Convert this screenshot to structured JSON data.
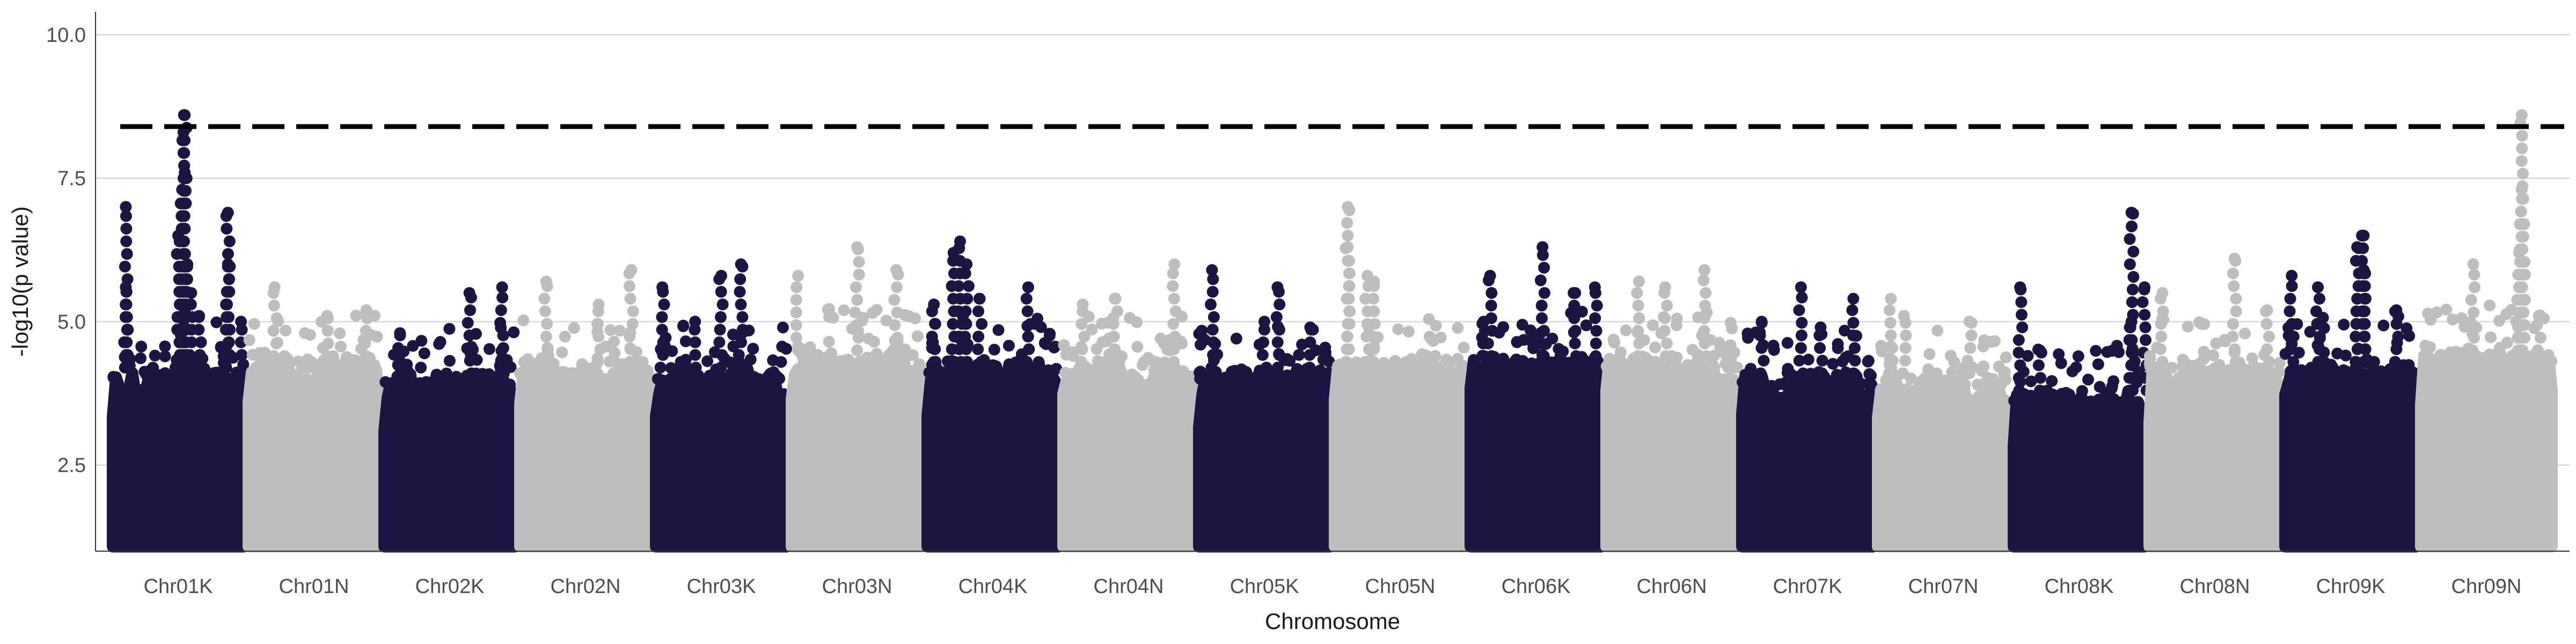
{
  "chart_data": {
    "type": "scatter",
    "subtype": "manhattan",
    "title": "",
    "xlabel": "Chromosome",
    "ylabel": "-log10(p value)",
    "ylim": [
      1.0,
      10.4
    ],
    "yticks": [
      "2.5",
      "5.0",
      "7.5",
      "10.0"
    ],
    "threshold": 8.4,
    "grid": "horizontal major lines",
    "colors": {
      "dark": "#1e1442",
      "light": "#bebebe",
      "threshold": "#000000",
      "grid": "#d0d0d0"
    },
    "categories": [
      "Chr01K",
      "Chr01N",
      "Chr02K",
      "Chr02N",
      "Chr03K",
      "Chr03N",
      "Chr04K",
      "Chr04N",
      "Chr05K",
      "Chr05N",
      "Chr06K",
      "Chr06N",
      "Chr07K",
      "Chr07N",
      "Chr08K",
      "Chr08N",
      "Chr09K",
      "Chr09N"
    ],
    "chromosomes": [
      {
        "name": "Chr01K",
        "color": "dark",
        "typical_max": 4.2,
        "peaks": [
          {
            "pos": 0.55,
            "y": 8.6
          },
          {
            "pos": 0.54,
            "y": 8.3
          },
          {
            "pos": 0.55,
            "y": 7.6
          },
          {
            "pos": 0.53,
            "y": 7.3
          },
          {
            "pos": 0.1,
            "y": 7.0
          },
          {
            "pos": 0.88,
            "y": 6.9
          },
          {
            "pos": 0.5,
            "y": 6.5
          },
          {
            "pos": 0.57,
            "y": 6.0
          },
          {
            "pos": 0.88,
            "y": 6.0
          },
          {
            "pos": 0.1,
            "y": 5.6
          },
          {
            "pos": 0.6,
            "y": 5.5
          },
          {
            "pos": 0.55,
            "y": 5.2
          },
          {
            "pos": 0.66,
            "y": 5.1
          },
          {
            "pos": 0.98,
            "y": 5.0
          }
        ]
      },
      {
        "name": "Chr01N",
        "color": "light",
        "typical_max": 4.4,
        "peaks": [
          {
            "pos": 0.2,
            "y": 5.6
          },
          {
            "pos": 0.9,
            "y": 5.2
          },
          {
            "pos": 0.6,
            "y": 5.1
          }
        ]
      },
      {
        "name": "Chr02K",
        "color": "dark",
        "typical_max": 4.1,
        "peaks": [
          {
            "pos": 0.65,
            "y": 5.5
          },
          {
            "pos": 0.9,
            "y": 5.6
          },
          {
            "pos": 0.12,
            "y": 4.8
          }
        ]
      },
      {
        "name": "Chr02N",
        "color": "light",
        "typical_max": 4.3,
        "peaks": [
          {
            "pos": 0.2,
            "y": 5.7
          },
          {
            "pos": 0.85,
            "y": 5.9
          },
          {
            "pos": 0.6,
            "y": 5.3
          }
        ]
      },
      {
        "name": "Chr03K",
        "color": "dark",
        "typical_max": 4.2,
        "peaks": [
          {
            "pos": 0.05,
            "y": 5.6
          },
          {
            "pos": 0.5,
            "y": 5.8
          },
          {
            "pos": 0.65,
            "y": 6.0
          },
          {
            "pos": 0.3,
            "y": 5.0
          }
        ]
      },
      {
        "name": "Chr03N",
        "color": "light",
        "typical_max": 4.5,
        "peaks": [
          {
            "pos": 0.5,
            "y": 6.3
          },
          {
            "pos": 0.05,
            "y": 5.8
          },
          {
            "pos": 0.8,
            "y": 5.9
          }
        ]
      },
      {
        "name": "Chr04K",
        "color": "dark",
        "typical_max": 4.3,
        "peaks": [
          {
            "pos": 0.25,
            "y": 6.4
          },
          {
            "pos": 0.2,
            "y": 6.2
          },
          {
            "pos": 0.3,
            "y": 6.0
          },
          {
            "pos": 0.77,
            "y": 5.6
          },
          {
            "pos": 0.4,
            "y": 5.4
          },
          {
            "pos": 0.05,
            "y": 5.3
          }
        ]
      },
      {
        "name": "Chr04N",
        "color": "light",
        "typical_max": 4.3,
        "peaks": [
          {
            "pos": 0.85,
            "y": 6.0
          },
          {
            "pos": 0.15,
            "y": 5.3
          },
          {
            "pos": 0.4,
            "y": 5.4
          }
        ]
      },
      {
        "name": "Chr05K",
        "color": "dark",
        "typical_max": 4.2,
        "peaks": [
          {
            "pos": 0.1,
            "y": 5.9
          },
          {
            "pos": 0.6,
            "y": 5.6
          },
          {
            "pos": 0.5,
            "y": 5.0
          },
          {
            "pos": 0.85,
            "y": 4.9
          }
        ]
      },
      {
        "name": "Chr05N",
        "color": "light",
        "typical_max": 4.3,
        "peaks": [
          {
            "pos": 0.1,
            "y": 7.0
          },
          {
            "pos": 0.1,
            "y": 6.3
          },
          {
            "pos": 0.25,
            "y": 5.8
          },
          {
            "pos": 0.3,
            "y": 5.7
          }
        ]
      },
      {
        "name": "Chr06K",
        "color": "dark",
        "typical_max": 4.4,
        "peaks": [
          {
            "pos": 0.55,
            "y": 6.3
          },
          {
            "pos": 0.15,
            "y": 5.8
          },
          {
            "pos": 0.95,
            "y": 5.6
          },
          {
            "pos": 0.8,
            "y": 5.5
          },
          {
            "pos": 0.1,
            "y": 5.0
          }
        ]
      },
      {
        "name": "Chr06N",
        "color": "light",
        "typical_max": 4.4,
        "peaks": [
          {
            "pos": 0.75,
            "y": 5.9
          },
          {
            "pos": 0.45,
            "y": 5.6
          },
          {
            "pos": 0.25,
            "y": 5.7
          }
        ]
      },
      {
        "name": "Chr07K",
        "color": "dark",
        "typical_max": 4.1,
        "peaks": [
          {
            "pos": 0.45,
            "y": 5.6
          },
          {
            "pos": 0.85,
            "y": 5.4
          },
          {
            "pos": 0.15,
            "y": 5.0
          },
          {
            "pos": 0.6,
            "y": 4.9
          }
        ]
      },
      {
        "name": "Chr07N",
        "color": "light",
        "typical_max": 4.1,
        "peaks": [
          {
            "pos": 0.1,
            "y": 5.4
          },
          {
            "pos": 0.2,
            "y": 5.1
          },
          {
            "pos": 0.7,
            "y": 5.0
          }
        ]
      },
      {
        "name": "Chr08K",
        "color": "dark",
        "typical_max": 3.8,
        "peaks": [
          {
            "pos": 0.9,
            "y": 6.9
          },
          {
            "pos": 0.05,
            "y": 5.6
          },
          {
            "pos": 0.9,
            "y": 5.0
          },
          {
            "pos": 1.0,
            "y": 5.6
          },
          {
            "pos": 0.2,
            "y": 4.5
          }
        ]
      },
      {
        "name": "Chr08N",
        "color": "light",
        "typical_max": 4.3,
        "peaks": [
          {
            "pos": 0.65,
            "y": 6.1
          },
          {
            "pos": 0.1,
            "y": 5.5
          },
          {
            "pos": 0.9,
            "y": 5.2
          }
        ]
      },
      {
        "name": "Chr09K",
        "color": "dark",
        "typical_max": 4.3,
        "peaks": [
          {
            "pos": 0.6,
            "y": 6.5
          },
          {
            "pos": 0.55,
            "y": 6.3
          },
          {
            "pos": 0.6,
            "y": 5.9
          },
          {
            "pos": 0.05,
            "y": 5.8
          },
          {
            "pos": 0.25,
            "y": 5.6
          },
          {
            "pos": 0.85,
            "y": 5.2
          }
        ]
      },
      {
        "name": "Chr09N",
        "color": "light",
        "typical_max": 4.5,
        "peaks": [
          {
            "pos": 0.77,
            "y": 8.6
          },
          {
            "pos": 0.77,
            "y": 7.3
          },
          {
            "pos": 0.78,
            "y": 6.7
          },
          {
            "pos": 0.75,
            "y": 6.2
          },
          {
            "pos": 0.4,
            "y": 6.0
          },
          {
            "pos": 0.9,
            "y": 5.1
          }
        ]
      }
    ]
  }
}
